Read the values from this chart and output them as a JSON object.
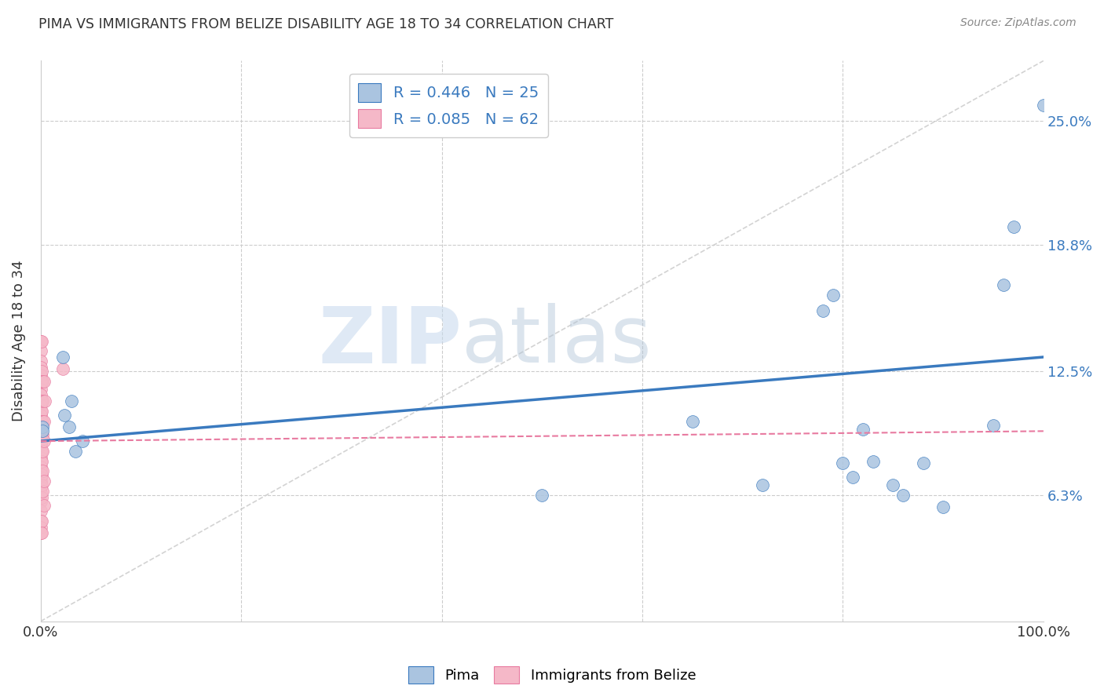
{
  "title": "PIMA VS IMMIGRANTS FROM BELIZE DISABILITY AGE 18 TO 34 CORRELATION CHART",
  "source": "Source: ZipAtlas.com",
  "ylabel": "Disability Age 18 to 34",
  "xlim": [
    0.0,
    1.0
  ],
  "ylim": [
    0.0,
    0.28
  ],
  "xtick_labels": [
    "0.0%",
    "100.0%"
  ],
  "ytick_labels": [
    "6.3%",
    "12.5%",
    "18.8%",
    "25.0%"
  ],
  "ytick_values": [
    0.063,
    0.125,
    0.188,
    0.25
  ],
  "watermark_zip": "ZIP",
  "watermark_atlas": "atlas",
  "legend_line1": "R = 0.446   N = 25",
  "legend_line2": "R = 0.085   N = 62",
  "pima_scatter": [
    [
      0.002,
      0.097
    ],
    [
      0.002,
      0.095
    ],
    [
      0.022,
      0.132
    ],
    [
      0.024,
      0.103
    ],
    [
      0.028,
      0.097
    ],
    [
      0.031,
      0.11
    ],
    [
      0.035,
      0.085
    ],
    [
      0.042,
      0.09
    ],
    [
      0.5,
      0.063
    ],
    [
      0.65,
      0.1
    ],
    [
      0.72,
      0.068
    ],
    [
      0.78,
      0.155
    ],
    [
      0.79,
      0.163
    ],
    [
      0.8,
      0.079
    ],
    [
      0.81,
      0.072
    ],
    [
      0.82,
      0.096
    ],
    [
      0.83,
      0.08
    ],
    [
      0.85,
      0.068
    ],
    [
      0.86,
      0.063
    ],
    [
      0.88,
      0.079
    ],
    [
      0.9,
      0.057
    ],
    [
      0.95,
      0.098
    ],
    [
      0.96,
      0.168
    ],
    [
      0.97,
      0.197
    ],
    [
      1.0,
      0.258
    ]
  ],
  "belize_scatter": [
    [
      0.0,
      0.14
    ],
    [
      0.0,
      0.135
    ],
    [
      0.0,
      0.13
    ],
    [
      0.0,
      0.127
    ],
    [
      0.0,
      0.123
    ],
    [
      0.0,
      0.12
    ],
    [
      0.0,
      0.116
    ],
    [
      0.0,
      0.113
    ],
    [
      0.0,
      0.11
    ],
    [
      0.0,
      0.108
    ],
    [
      0.0,
      0.105
    ],
    [
      0.0,
      0.103
    ],
    [
      0.0,
      0.1
    ],
    [
      0.0,
      0.098
    ],
    [
      0.0,
      0.095
    ],
    [
      0.0,
      0.093
    ],
    [
      0.0,
      0.09
    ],
    [
      0.0,
      0.088
    ],
    [
      0.0,
      0.085
    ],
    [
      0.0,
      0.082
    ],
    [
      0.0,
      0.08
    ],
    [
      0.0,
      0.077
    ],
    [
      0.0,
      0.075
    ],
    [
      0.0,
      0.072
    ],
    [
      0.0,
      0.07
    ],
    [
      0.0,
      0.067
    ],
    [
      0.0,
      0.064
    ],
    [
      0.0,
      0.06
    ],
    [
      0.0,
      0.055
    ],
    [
      0.0,
      0.05
    ],
    [
      0.0,
      0.047
    ],
    [
      0.0,
      0.044
    ],
    [
      0.001,
      0.14
    ],
    [
      0.001,
      0.125
    ],
    [
      0.001,
      0.12
    ],
    [
      0.001,
      0.11
    ],
    [
      0.001,
      0.105
    ],
    [
      0.001,
      0.1
    ],
    [
      0.001,
      0.097
    ],
    [
      0.001,
      0.093
    ],
    [
      0.001,
      0.09
    ],
    [
      0.001,
      0.085
    ],
    [
      0.001,
      0.08
    ],
    [
      0.001,
      0.073
    ],
    [
      0.001,
      0.068
    ],
    [
      0.001,
      0.062
    ],
    [
      0.001,
      0.05
    ],
    [
      0.001,
      0.044
    ],
    [
      0.002,
      0.12
    ],
    [
      0.002,
      0.11
    ],
    [
      0.002,
      0.1
    ],
    [
      0.002,
      0.093
    ],
    [
      0.002,
      0.085
    ],
    [
      0.002,
      0.075
    ],
    [
      0.002,
      0.065
    ],
    [
      0.003,
      0.12
    ],
    [
      0.003,
      0.1
    ],
    [
      0.003,
      0.09
    ],
    [
      0.003,
      0.07
    ],
    [
      0.003,
      0.058
    ],
    [
      0.004,
      0.11
    ],
    [
      0.022,
      0.126
    ]
  ],
  "pima_line": {
    "x0": 0.0,
    "y0": 0.09,
    "x1": 1.0,
    "y1": 0.132
  },
  "belize_line": {
    "x0": 0.0,
    "y0": 0.09,
    "x1": 1.0,
    "y1": 0.095
  },
  "diagonal_line": {
    "x0": 0.0,
    "y0": 0.0,
    "x1": 1.0,
    "y1": 0.28
  },
  "pima_line_color": "#3a7abf",
  "belize_line_color": "#e87aa0",
  "diagonal_line_color": "#c8c8c8",
  "scatter_blue": "#aac4e0",
  "scatter_pink": "#f5b8c8",
  "bg_color": "#ffffff",
  "grid_color": "#cccccc",
  "title_color": "#333333"
}
